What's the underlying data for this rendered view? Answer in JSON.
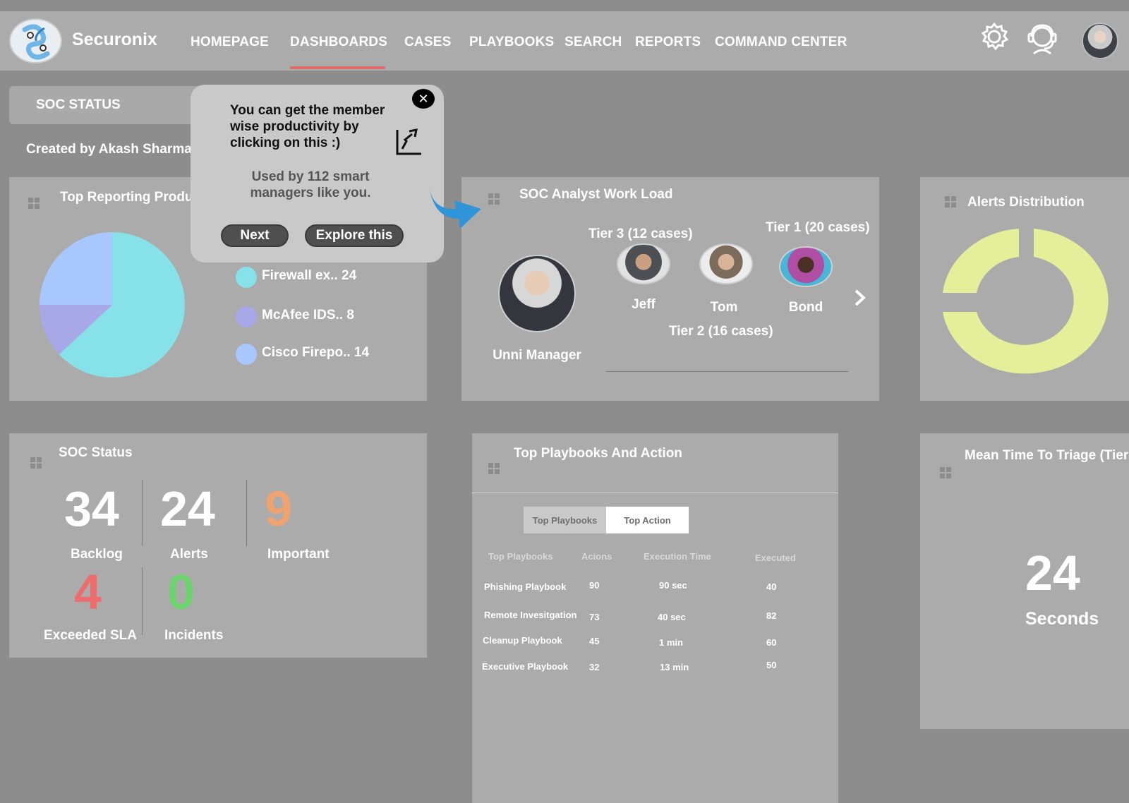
{
  "app": {
    "brand": "Securonix"
  },
  "nav": {
    "items": [
      "HOMEPAGE",
      "DASHBOARDS",
      "CASES",
      "PLAYBOOKS",
      "SEARCH",
      "REPORTS",
      "COMMAND CENTER"
    ],
    "active": "DASHBOARDS",
    "active_color": "#e06a6a"
  },
  "header_icons": [
    "gear-icon",
    "support-agent-icon",
    "user-avatar"
  ],
  "selector": {
    "value": "SOC STATUS",
    "created_by": "Created by Akash Sharma"
  },
  "top_reporting": {
    "title": "Top Reporting Produ",
    "legend": [
      {
        "label": "Firewall ex.. 24",
        "color": "#86e1e8"
      },
      {
        "label": "McAfee IDS.. 8",
        "color": "#a8a8e8"
      },
      {
        "label": "Cisco Firepo.. 14",
        "color": "#a9c7ff"
      }
    ]
  },
  "workload": {
    "title": "SOC Analyst Work Load",
    "manager": "Unni Manager",
    "tier3": "Tier 3 (12 cases)",
    "tier1": "Tier 1 (20 cases)",
    "tier2": "Tier 2 (16 cases)",
    "analysts": [
      "Jeff",
      "Tom",
      "Bond"
    ]
  },
  "alerts_distribution": {
    "title": "Alerts Distribution",
    "color": "#e5ef9a"
  },
  "soc_status": {
    "title": "SOC Status",
    "backlog": {
      "value": "34",
      "label": "Backlog"
    },
    "alerts": {
      "value": "24",
      "label": "Alerts"
    },
    "important": {
      "value": "9",
      "label": "Important",
      "color": "#f0a36f"
    },
    "exceeded_sla": {
      "value": "4",
      "label": "Exceeded SLA",
      "color": "#ef6c6c"
    },
    "incidents": {
      "value": "0",
      "label": "Incidents",
      "color": "#6dd46d"
    }
  },
  "playbooks": {
    "title": "Top Playbooks And Action",
    "tabs": [
      "Top Playbooks",
      "Top Action"
    ],
    "active_tab": "Top Action",
    "columns": [
      "Top Playbooks",
      "Acions",
      "Execution Time",
      "Executed"
    ],
    "rows": [
      [
        "Phishing Playbook",
        "90",
        "90 sec",
        "40"
      ],
      [
        "Remote Invesitgation",
        "73",
        "40 sec",
        "82"
      ],
      [
        "Cleanup Playbook",
        "45",
        "1  min",
        "60"
      ],
      [
        "Executive  Playbook",
        "32",
        "13  min",
        "50"
      ]
    ]
  },
  "mean_time": {
    "title": "Mean Time To Triage (Tier",
    "value": "24",
    "unit": "Seconds"
  },
  "popup": {
    "message": "You can get the member wise productivity by clicking on this :)",
    "used_by": "Used by 112 smart managers like you.",
    "next": "Next",
    "explore": "Explore this",
    "arrow_color": "#2f95d8"
  }
}
